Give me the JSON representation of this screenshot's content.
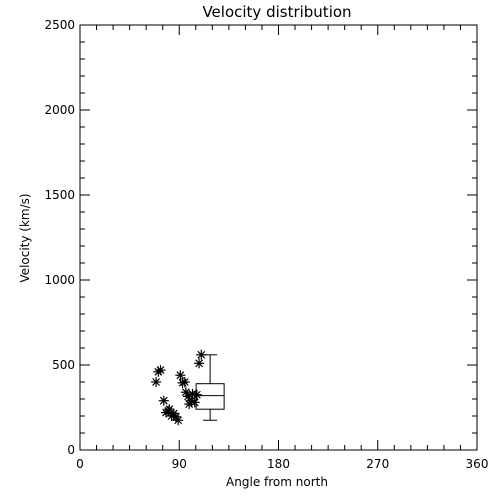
{
  "chart_data": {
    "type": "scatter",
    "title": "Velocity distribution",
    "xlabel": "Angle from north",
    "ylabel": "Velocity (km/s)",
    "xlim": [
      0,
      360
    ],
    "ylim": [
      0,
      2500
    ],
    "xticks": [
      "0",
      "90",
      "180",
      "270",
      "360"
    ],
    "yticks": [
      "0",
      "500",
      "1000",
      "1500",
      "2000",
      "2500"
    ],
    "grid": false,
    "legend": "none",
    "marker": "asterisk",
    "color": "#000000",
    "series": [
      {
        "x": [
          69,
          71,
          73,
          76,
          78,
          80,
          81,
          83,
          85,
          87,
          89,
          91,
          93,
          95,
          96,
          98,
          99,
          101,
          102,
          104,
          106,
          108,
          110
        ],
        "y": [
          400,
          460,
          470,
          290,
          220,
          230,
          240,
          200,
          215,
          195,
          175,
          440,
          395,
          400,
          340,
          315,
          270,
          290,
          330,
          280,
          325,
          510,
          560
        ]
      }
    ],
    "boxplot": {
      "position": 118,
      "whisker_low": 175,
      "q1": 240,
      "median": 320,
      "q3": 390,
      "whisker_high": 560
    }
  }
}
